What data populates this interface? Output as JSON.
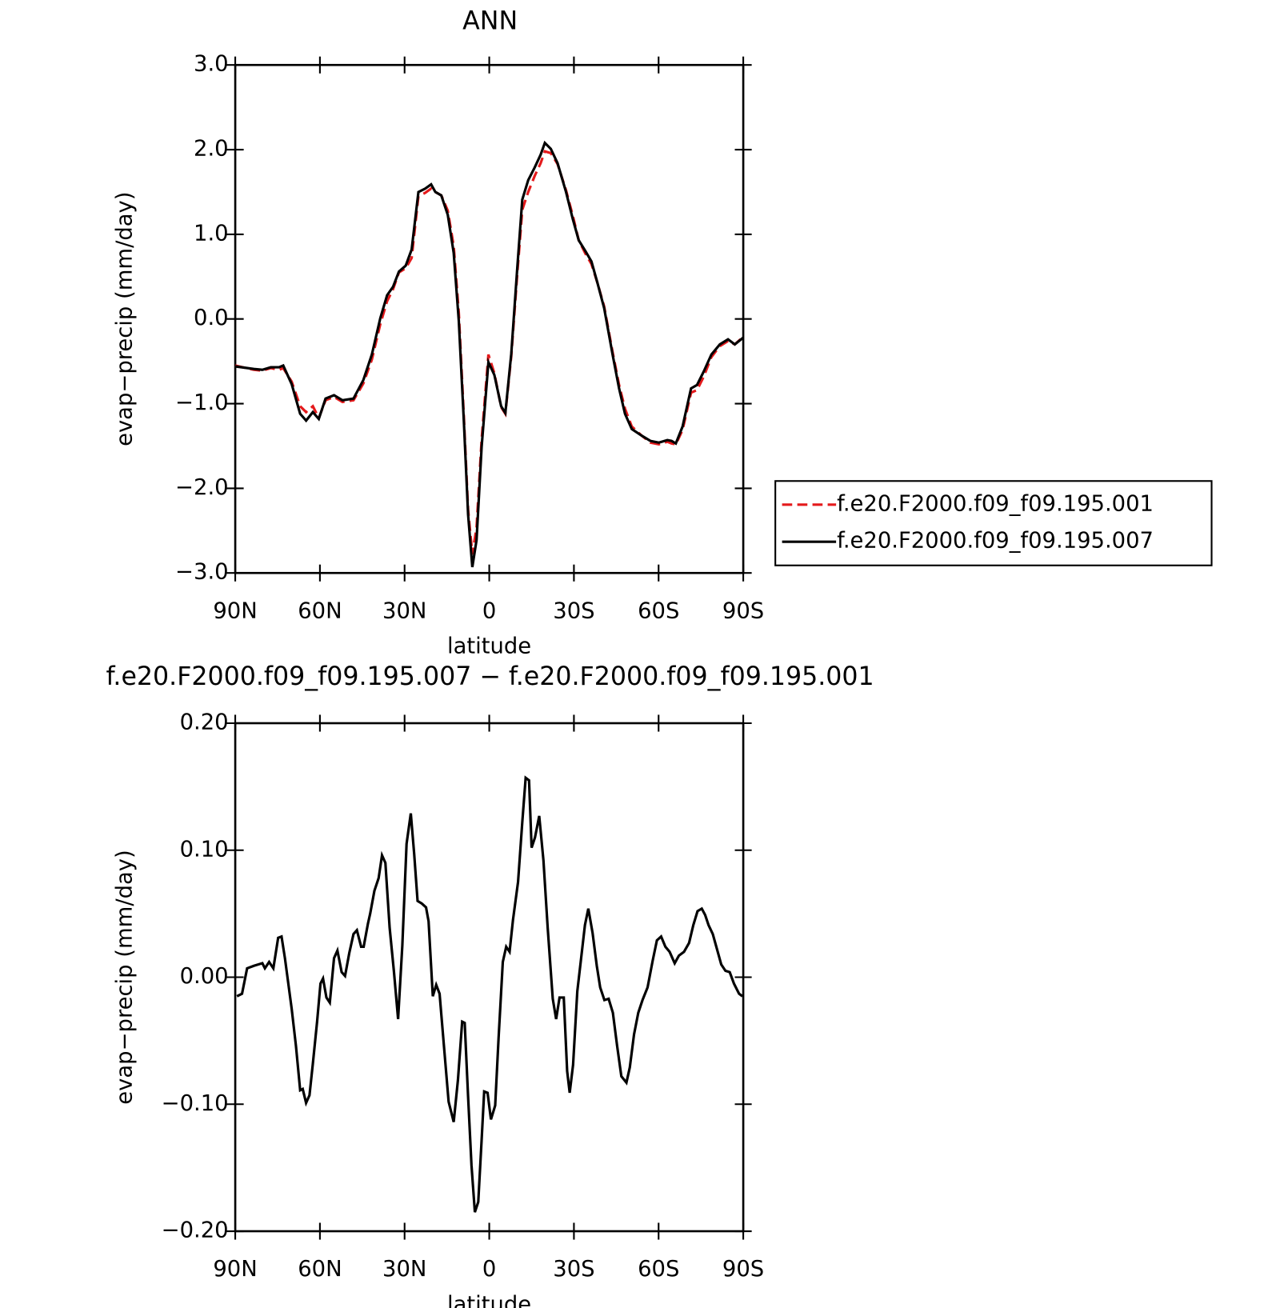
{
  "chart_data": [
    {
      "type": "line",
      "title": "ANN",
      "xlabel": "latitude",
      "ylabel": "evap−precip (mm/day)",
      "xlim": [
        90,
        -90
      ],
      "xticks": [
        {
          "value": 90,
          "label": "90N"
        },
        {
          "value": 60,
          "label": "60N"
        },
        {
          "value": 30,
          "label": "30N"
        },
        0,
        {
          "value": -30,
          "label": "30S"
        },
        {
          "value": -60,
          "label": "60S"
        },
        {
          "value": -90,
          "label": "90S"
        }
      ],
      "ylim": [
        -3,
        3
      ],
      "yticks": [
        {
          "value": 3,
          "label": "3.0"
        },
        {
          "value": 2,
          "label": "2.0"
        },
        {
          "value": 1,
          "label": "1.0"
        },
        {
          "value": 0,
          "label": "0.0"
        },
        {
          "value": -1,
          "label": "−1.0"
        },
        {
          "value": -2,
          "label": "−2.0"
        },
        {
          "value": -3,
          "label": "−3.0"
        }
      ],
      "legend": "right",
      "x": [
        90,
        83.4,
        80.4,
        77.4,
        74.5,
        73,
        70,
        67,
        64.9,
        62.5,
        60.4,
        58,
        55,
        52,
        48.1,
        44.6,
        41.6,
        38.6,
        36.2,
        34.1,
        32,
        29.6,
        27.5,
        25.1,
        22.7,
        20.6,
        19.1,
        17,
        14.7,
        12.6,
        10.8,
        9,
        7.5,
        6,
        4.5,
        2.7,
        0.3,
        -1.8,
        -4.2,
        -5.7,
        -7.8,
        -9.9,
        -11.7,
        -13.8,
        -16.1,
        -18.2,
        -19.7,
        -21.8,
        -24.2,
        -27.2,
        -29.6,
        -31.7,
        -34.1,
        -36.2,
        -38.3,
        -40.7,
        -43.7,
        -46,
        -48.1,
        -50.5,
        -54.1,
        -57.1,
        -60.1,
        -63.1,
        -64.6,
        -66.1,
        -68.5,
        -71.5,
        -73.6,
        -76,
        -78.7,
        -81.7,
        -84.6,
        -87,
        -90
      ],
      "series": [
        {
          "name": "f.e20.F2000.f09_f09.195.001",
          "color": "#e41a1c",
          "dash": true,
          "values": [
            -0.55,
            -0.6,
            -0.61,
            -0.58,
            -0.6,
            -0.58,
            -0.74,
            -1.03,
            -1.1,
            -1.03,
            -1.17,
            -0.96,
            -0.92,
            -0.98,
            -0.96,
            -0.76,
            -0.48,
            -0.06,
            0.21,
            0.35,
            0.55,
            0.6,
            0.72,
            1.45,
            1.49,
            1.54,
            1.5,
            1.46,
            1.28,
            0.86,
            0.08,
            -1.15,
            -2.25,
            -2.78,
            -2.46,
            -1.42,
            -0.42,
            -0.64,
            -1.04,
            -1.12,
            -0.44,
            0.52,
            1.29,
            1.5,
            1.69,
            1.84,
            1.98,
            1.96,
            1.83,
            1.52,
            1.22,
            0.93,
            0.77,
            0.65,
            0.43,
            0.15,
            -0.39,
            -0.78,
            -1.06,
            -1.27,
            -1.38,
            -1.46,
            -1.48,
            -1.45,
            -1.47,
            -1.48,
            -1.31,
            -0.87,
            -0.84,
            -0.68,
            -0.45,
            -0.32,
            -0.26,
            -0.3,
            -0.21
          ]
        },
        {
          "name": "f.e20.F2000.f09_f09.195.007",
          "color": "#000000",
          "dash": false,
          "values": [
            -0.56,
            -0.59,
            -0.6,
            -0.57,
            -0.57,
            -0.55,
            -0.77,
            -1.12,
            -1.2,
            -1.1,
            -1.18,
            -0.94,
            -0.9,
            -0.96,
            -0.94,
            -0.72,
            -0.42,
            0.01,
            0.28,
            0.38,
            0.56,
            0.63,
            0.82,
            1.5,
            1.54,
            1.59,
            1.5,
            1.46,
            1.23,
            0.78,
            -0.02,
            -1.21,
            -2.31,
            -2.93,
            -2.61,
            -1.51,
            -0.51,
            -0.66,
            -1.03,
            -1.11,
            -0.41,
            0.59,
            1.41,
            1.64,
            1.79,
            1.94,
            2.08,
            2.01,
            1.84,
            1.5,
            1.18,
            0.93,
            0.8,
            0.68,
            0.43,
            0.13,
            -0.42,
            -0.82,
            -1.12,
            -1.3,
            -1.38,
            -1.44,
            -1.46,
            -1.43,
            -1.44,
            -1.47,
            -1.27,
            -0.82,
            -0.78,
            -0.62,
            -0.42,
            -0.3,
            -0.24,
            -0.3,
            -0.22
          ]
        }
      ]
    },
    {
      "type": "line",
      "title": "f.e20.F2000.f09_f09.195.007 − f.e20.F2000.f09_f09.195.001",
      "xlabel": "latitude",
      "ylabel": "evap−precip (mm/day)",
      "xlim": [
        90,
        -90
      ],
      "xticks": [
        {
          "value": 90,
          "label": "90N"
        },
        {
          "value": 60,
          "label": "60N"
        },
        {
          "value": 30,
          "label": "30N"
        },
        0,
        {
          "value": -30,
          "label": "30S"
        },
        {
          "value": -60,
          "label": "60S"
        },
        {
          "value": -90,
          "label": "90S"
        }
      ],
      "ylim": [
        -0.2,
        0.2
      ],
      "yticks": [
        {
          "value": 0.2,
          "label": "0.20"
        },
        {
          "value": 0.1,
          "label": "0.10"
        },
        {
          "value": 0,
          "label": "0.00"
        },
        {
          "value": -0.1,
          "label": "−0.10"
        },
        {
          "value": -0.2,
          "label": "−0.20"
        }
      ],
      "x": [
        89.4,
        87.6,
        85.8,
        83.4,
        80.4,
        79.5,
        78,
        76.5,
        74.8,
        73.6,
        72.4,
        70,
        68.5,
        67,
        66.1,
        64.9,
        63.7,
        62.5,
        61,
        59.8,
        58.9,
        57.7,
        56.5,
        55,
        53.8,
        52.3,
        51.1,
        49.6,
        48.1,
        46.9,
        45.4,
        44.5,
        43,
        42.2,
        40.7,
        39.2,
        38,
        36.8,
        35.3,
        33.8,
        32.3,
        30.8,
        29.3,
        27.8,
        26.6,
        25.4,
        23.9,
        22.4,
        21.5,
        20,
        18.8,
        17.6,
        16.1,
        14.4,
        12.6,
        11.1,
        9.6,
        8.7,
        7.5,
        6.3,
        5.1,
        3.9,
        2.7,
        1.8,
        0.6,
        -0.6,
        -2.1,
        -3.3,
        -4.8,
        -6,
        -7.2,
        -8.4,
        -10.2,
        -11.7,
        -12.9,
        -14.1,
        -15,
        -16.2,
        -17.7,
        -19.2,
        -20.7,
        -22.5,
        -23.7,
        -24.9,
        -26.4,
        -27.6,
        -28.5,
        -29.7,
        -31.2,
        -32.4,
        -33.9,
        -35.1,
        -36.6,
        -38.1,
        -39.3,
        -40.8,
        -42.3,
        -43.8,
        -45.3,
        -46.8,
        -48.6,
        -49.8,
        -51.3,
        -52.8,
        -54.3,
        -56.1,
        -57.9,
        -59.4,
        -60.9,
        -62.4,
        -63.9,
        -65.7,
        -67.2,
        -69,
        -70.8,
        -72.3,
        -73.8,
        -75.3,
        -76.5,
        -77.7,
        -79.2,
        -80.7,
        -82.2,
        -83.7,
        -85.2,
        -86.7,
        -88.5,
        -89.7
      ],
      "series": [
        {
          "color": "#000000",
          "dash": false,
          "values": [
            -0.015,
            -0.013,
            0.007,
            0.009,
            0.011,
            0.007,
            0.012,
            0.007,
            0.031,
            0.032,
            0.015,
            -0.025,
            -0.054,
            -0.089,
            -0.088,
            -0.099,
            -0.093,
            -0.068,
            -0.035,
            -0.005,
            -0.001,
            -0.016,
            -0.02,
            0.015,
            0.021,
            0.004,
            0.001,
            0.019,
            0.034,
            0.037,
            0.024,
            0.024,
            0.042,
            0.05,
            0.068,
            0.078,
            0.096,
            0.09,
            0.039,
            0.005,
            -0.033,
            0.025,
            0.105,
            0.129,
            0.097,
            0.06,
            0.058,
            0.055,
            0.044,
            -0.015,
            -0.006,
            -0.013,
            -0.053,
            -0.098,
            -0.114,
            -0.081,
            -0.035,
            -0.036,
            -0.094,
            -0.148,
            -0.185,
            -0.177,
            -0.128,
            -0.09,
            -0.091,
            -0.112,
            -0.101,
            -0.048,
            0.012,
            0.024,
            0.02,
            0.045,
            0.075,
            0.122,
            0.157,
            0.155,
            0.102,
            0.11,
            0.127,
            0.092,
            0.039,
            -0.017,
            -0.033,
            -0.016,
            -0.016,
            -0.074,
            -0.091,
            -0.069,
            -0.011,
            0.012,
            0.041,
            0.054,
            0.035,
            0.009,
            -0.008,
            -0.018,
            -0.017,
            -0.028,
            -0.054,
            -0.078,
            -0.083,
            -0.071,
            -0.045,
            -0.028,
            -0.018,
            -0.008,
            0.013,
            0.029,
            0.032,
            0.024,
            0.02,
            0.011,
            0.017,
            0.02,
            0.027,
            0.041,
            0.052,
            0.054,
            0.049,
            0.041,
            0.034,
            0.022,
            0.01,
            0.005,
            0.004,
            -0.005,
            -0.013,
            -0.015
          ]
        }
      ]
    }
  ]
}
